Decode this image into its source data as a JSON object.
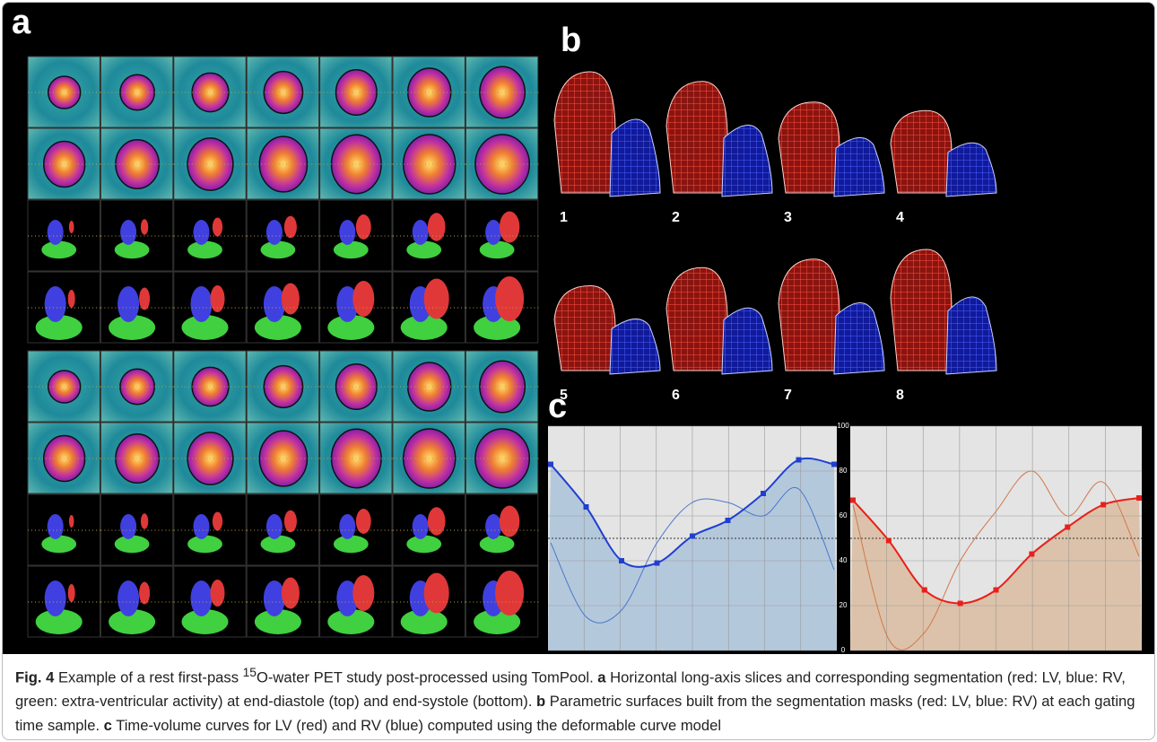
{
  "panel_labels": [
    "a",
    "b",
    "c"
  ],
  "mesh_labels": [
    "1",
    "2",
    "3",
    "4",
    "5",
    "6",
    "7",
    "8"
  ],
  "caption": {
    "parts": [
      "Fig. 4",
      " Example of a rest first-pass ",
      "15",
      "O-water PET study post-processed using TomPool. ",
      "a",
      " Horizontal long-axis slices and corresponding segmentation (red: LV, blue: RV, green: extra-ventricular activity) at end-diastole (top) and end-systole (bottom). ",
      "b",
      " Parametric surfaces built from the segmentation masks (red: LV, blue: RV) at each gating time sample. ",
      "c",
      " Time-volume curves for LV (red) and RV (blue) computed using the deformable curve model"
    ]
  },
  "chart_data": [
    {
      "type": "line",
      "categories": [
        null,
        null,
        null,
        null,
        null,
        null,
        null,
        null,
        null
      ],
      "series": [
        {
          "color": "#1f3fd0",
          "values": [
            83,
            64,
            40,
            39,
            51,
            58,
            70,
            85,
            83
          ]
        },
        {
          "color": "#4a78c8",
          "values": [
            48,
            15,
            18,
            48,
            66,
            66,
            60,
            72,
            36
          ]
        }
      ],
      "area_color": "#b4c8dc",
      "ylim": [
        0,
        100
      ],
      "yticks": [
        0,
        20,
        40,
        60,
        80,
        100
      ],
      "grid": true
    },
    {
      "type": "line",
      "categories": [
        null,
        null,
        null,
        null,
        null,
        null,
        null,
        null,
        null
      ],
      "series": [
        {
          "color": "#e8201a",
          "values": [
            67,
            49,
            27,
            21,
            27,
            43,
            55,
            65,
            68
          ]
        },
        {
          "color": "#d0784a",
          "values": [
            65,
            5,
            8,
            40,
            62,
            80,
            60,
            75,
            42
          ]
        }
      ],
      "area_color": "#dcc2aa",
      "ylim": [
        0,
        100
      ],
      "grid": true
    }
  ]
}
